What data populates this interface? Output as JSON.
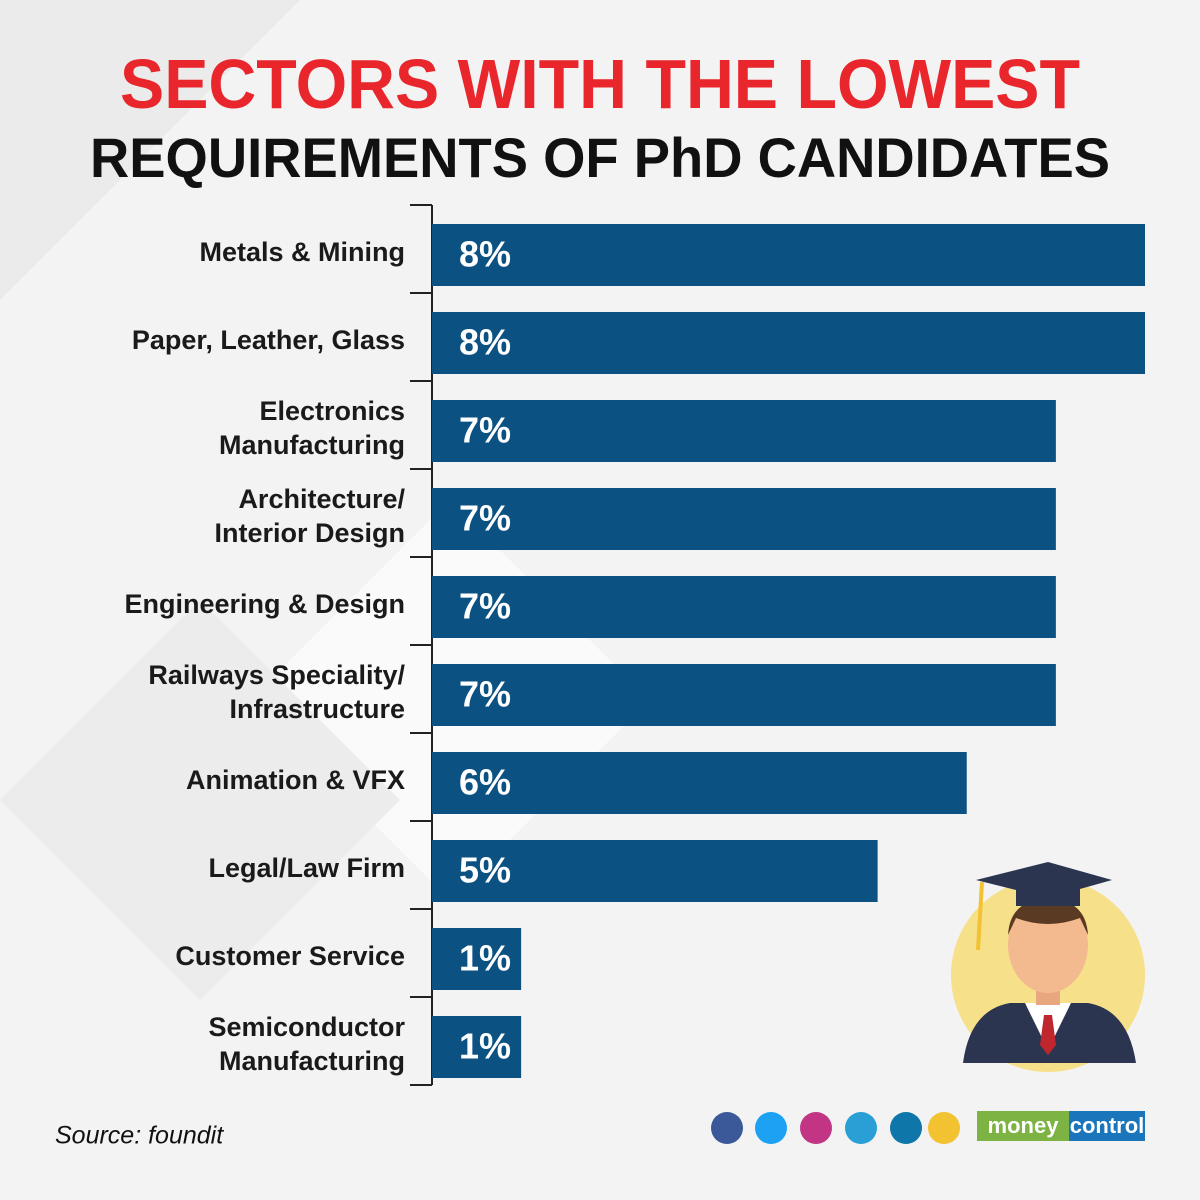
{
  "chart_data": {
    "type": "bar",
    "orientation": "horizontal",
    "title": "SECTORS WITH THE LOWEST",
    "subtitle": "REQUIREMENTS OF PhD CANDIDATES",
    "categories": [
      "Metals & Mining",
      "Paper, Leather, Glass",
      "Electronics\nManufacturing",
      "Architecture/\nInterior Design",
      "Engineering & Design",
      "Railways Speciality/\nInfrastructure",
      "Animation & VFX",
      "Legal/Law Firm",
      "Customer Service",
      "Semiconductor\nManufacturing"
    ],
    "values": [
      8,
      8,
      7,
      7,
      7,
      7,
      6,
      5,
      1,
      1
    ],
    "value_labels": [
      "8%",
      "8%",
      "7%",
      "7%",
      "7%",
      "7%",
      "6%",
      "5%",
      "1%",
      "1%"
    ],
    "color": "#0b5282",
    "source": "Source: foundit",
    "brand": [
      "money",
      "control"
    ]
  }
}
